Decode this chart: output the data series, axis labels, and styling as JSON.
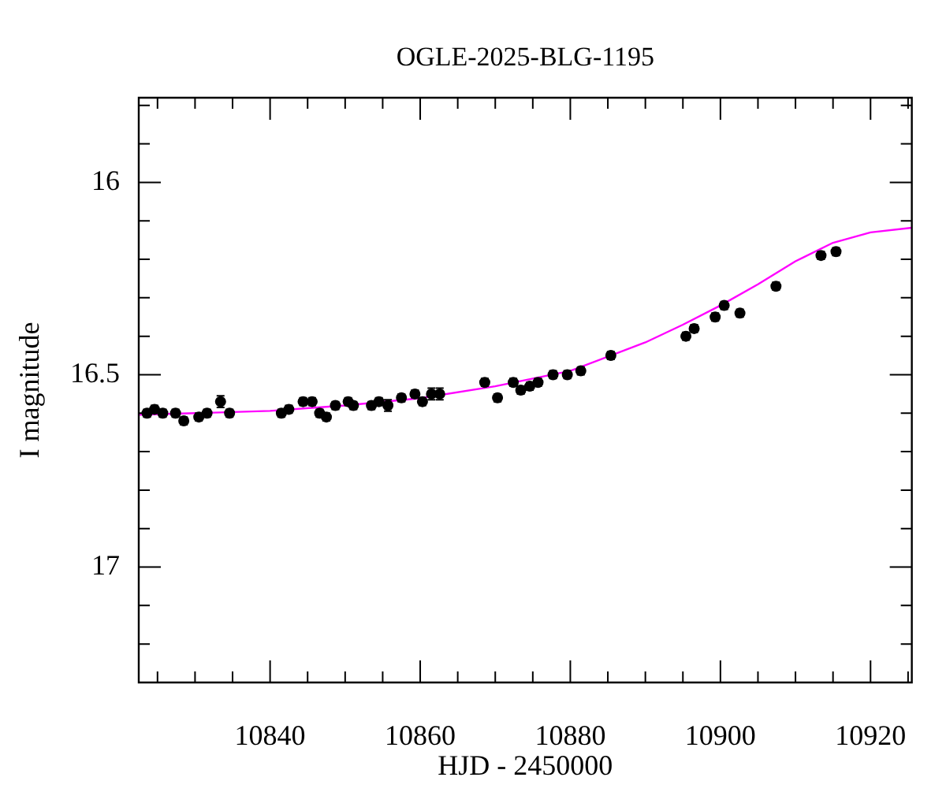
{
  "chart_data": {
    "type": "scatter",
    "title": "OGLE-2025-BLG-1195",
    "xlabel": "HJD - 2450000",
    "ylabel": "I magnitude",
    "xlim": [
      10822.5,
      10925.5
    ],
    "xticks": [
      {
        "value": 10825,
        "label": null
      },
      {
        "value": 10830,
        "label": null
      },
      {
        "value": 10835,
        "label": null
      },
      10840,
      {
        "value": 10845,
        "label": null
      },
      {
        "value": 10850,
        "label": null
      },
      {
        "value": 10855,
        "label": null
      },
      10860,
      {
        "value": 10865,
        "label": null
      },
      {
        "value": 10870,
        "label": null
      },
      {
        "value": 10875,
        "label": null
      },
      10880,
      {
        "value": 10885,
        "label": null
      },
      {
        "value": 10890,
        "label": null
      },
      {
        "value": 10895,
        "label": null
      },
      10900,
      {
        "value": 10905,
        "label": null
      },
      {
        "value": 10910,
        "label": null
      },
      {
        "value": 10915,
        "label": null
      },
      10920,
      {
        "value": 10925,
        "label": null
      }
    ],
    "ylim": [
      17.3,
      15.78
    ],
    "yticks": [
      {
        "value": 15.8,
        "label": null
      },
      {
        "value": 15.9,
        "label": null
      },
      16,
      {
        "value": 16.1,
        "label": null
      },
      {
        "value": 16.2,
        "label": null
      },
      {
        "value": 16.3,
        "label": null
      },
      {
        "value": 16.4,
        "label": null
      },
      16.5,
      {
        "value": 16.6,
        "label": null
      },
      {
        "value": 16.7,
        "label": null
      },
      {
        "value": 16.8,
        "label": null
      },
      {
        "value": 16.9,
        "label": null
      },
      17,
      {
        "value": 17.1,
        "label": null
      },
      {
        "value": 17.2,
        "label": null
      },
      {
        "value": 17.3,
        "label": null
      }
    ],
    "grid": false,
    "legend": false,
    "marker": "circle",
    "series": [
      {
        "color": "#000000",
        "x": [
          10823.6,
          10824.6,
          10825.7,
          10827.4,
          10828.5,
          10830.5,
          10831.6,
          10833.4,
          10834.6,
          10841.5,
          10842.5,
          10844.4,
          10845.6,
          10846.6,
          10847.5,
          10848.7,
          10850.4,
          10851.1,
          10853.5,
          10854.5,
          10855.7,
          10857.5,
          10859.3,
          10860.3,
          10861.5,
          10862.6,
          10868.6,
          10870.3,
          10872.4,
          10873.4,
          10874.6,
          10875.7,
          10877.7,
          10879.6,
          10881.4,
          10885.4,
          10895.4,
          10896.5,
          10899.3,
          10900.5,
          10902.6,
          10907.4,
          10913.4,
          10915.4
        ],
        "values": [
          16.6,
          16.59,
          16.6,
          16.6,
          16.62,
          16.61,
          16.6,
          16.57,
          16.6,
          16.6,
          16.59,
          16.57,
          16.57,
          16.6,
          16.61,
          16.58,
          16.57,
          16.58,
          16.58,
          16.57,
          16.58,
          16.56,
          16.55,
          16.57,
          16.55,
          16.55,
          16.52,
          16.56,
          16.52,
          16.54,
          16.53,
          16.52,
          16.5,
          16.5,
          16.49,
          16.45,
          16.4,
          16.38,
          16.35,
          16.32,
          16.34,
          16.27,
          16.19,
          16.18
        ],
        "errors": [
          0.01,
          0.01,
          0.01,
          0.01,
          0.01,
          0.01,
          0.01,
          0.015,
          0.01,
          0.01,
          0.01,
          0.01,
          0.01,
          0.01,
          0.01,
          0.01,
          0.01,
          0.01,
          0.01,
          0.01,
          0.015,
          0.01,
          0.01,
          0.01,
          0.015,
          0.015,
          0.01,
          0.01,
          0.01,
          0.01,
          0.01,
          0.01,
          0.01,
          0.01,
          0.01,
          0.01,
          0.01,
          0.01,
          0.01,
          0.01,
          0.01,
          0.01,
          0.01,
          0.01
        ]
      },
      {
        "type": "line",
        "color": "#ff00ff",
        "marker": "none",
        "line_style": "solid",
        "x": [
          10822.5,
          10830,
          10840,
          10850,
          10860,
          10870,
          10880,
          10890,
          10895,
          10900,
          10905,
          10910,
          10915,
          10920,
          10925.5
        ],
        "values": [
          16.604,
          16.6,
          16.594,
          16.58,
          16.561,
          16.53,
          16.49,
          16.416,
          16.37,
          16.32,
          16.265,
          16.205,
          16.157,
          16.13,
          16.118
        ]
      }
    ]
  }
}
